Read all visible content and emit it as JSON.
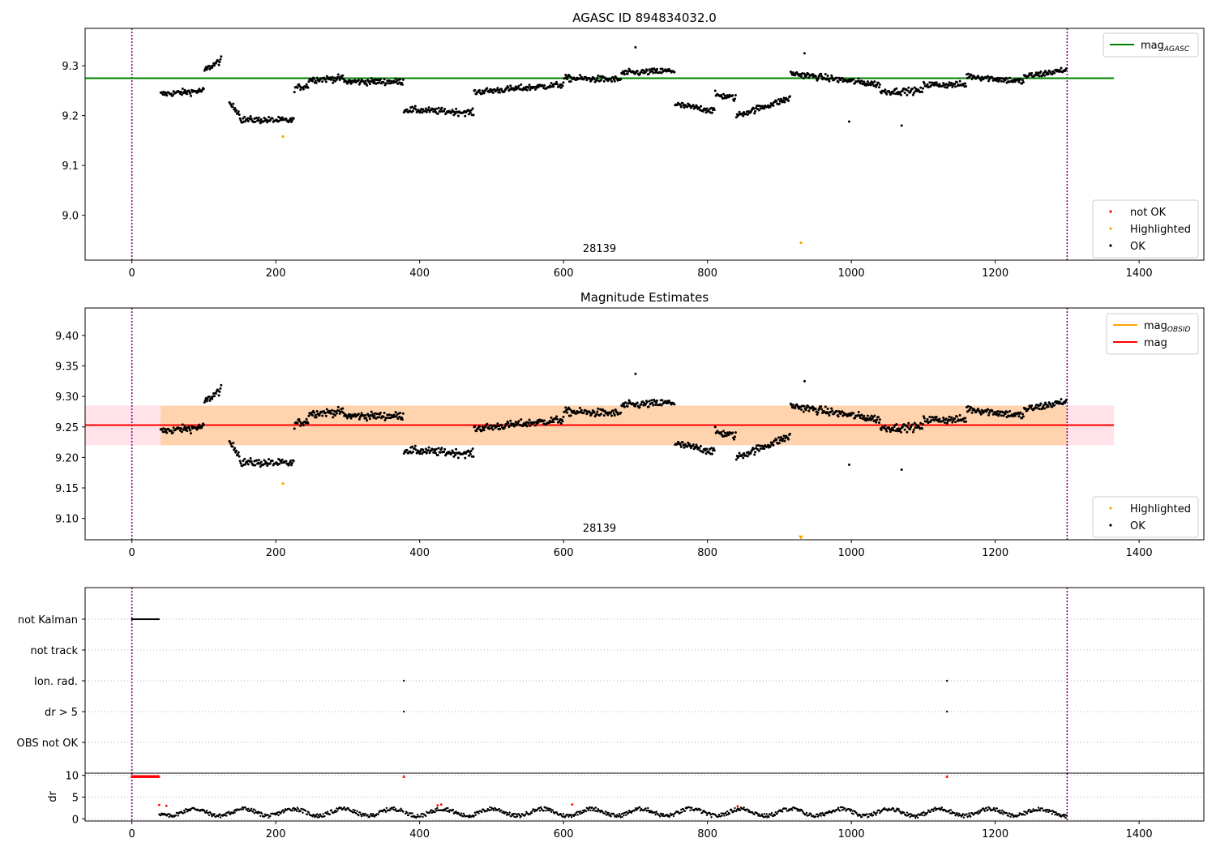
{
  "chart_data": [
    {
      "id": "p1",
      "type": "scatter",
      "title": "AGASC ID 894834032.0",
      "xlim": [
        -65,
        1490
      ],
      "ylim": [
        8.91,
        9.375
      ],
      "xticks": [
        0,
        200,
        400,
        600,
        800,
        1000,
        1200,
        1400
      ],
      "yticks": [
        9.0,
        9.1,
        9.2,
        9.3
      ],
      "ytick_labels": [
        "9.0",
        "9.1",
        "9.2",
        "9.3"
      ],
      "vlines": [
        0,
        1300
      ],
      "hline": {
        "label": "mag",
        "sub": "AGASC",
        "value": 9.275,
        "x": [
          -65,
          1365
        ],
        "color": "#008000"
      },
      "annotation": {
        "text": "28139",
        "x": 650
      },
      "highlighted": [
        {
          "x": 210,
          "y": 9.158
        },
        {
          "x": 930,
          "y": 8.945
        }
      ],
      "outliers": [
        {
          "x": 997,
          "y": 9.188
        },
        {
          "x": 1070,
          "y": 9.18
        },
        {
          "x": 700,
          "y": 9.337
        },
        {
          "x": 935,
          "y": 9.325
        }
      ],
      "legend_top": [
        {
          "label": "mag",
          "sub": "AGASC",
          "color": "#008000",
          "marker": "line"
        }
      ],
      "legend_bottom": [
        {
          "label": "not OK",
          "color": "#ff0000",
          "marker": "dot"
        },
        {
          "label": "Highlighted",
          "color": "#ffa500",
          "marker": "dot"
        },
        {
          "label": "OK",
          "color": "#000000",
          "marker": "dot"
        }
      ]
    },
    {
      "id": "p2",
      "type": "scatter",
      "title": "Magnitude Estimates",
      "xlim": [
        -65,
        1490
      ],
      "ylim": [
        9.065,
        9.445
      ],
      "xticks": [
        0,
        200,
        400,
        600,
        800,
        1000,
        1200,
        1400
      ],
      "yticks": [
        9.1,
        9.15,
        9.2,
        9.25,
        9.3,
        9.35,
        9.4
      ],
      "ytick_labels": [
        "9.10",
        "9.15",
        "9.20",
        "9.25",
        "9.30",
        "9.35",
        "9.40"
      ],
      "vlines": [
        0,
        1300
      ],
      "mag_line": {
        "label": "mag",
        "value": 9.253,
        "x": [
          -65,
          1365
        ],
        "color": "#ff0000"
      },
      "mag_band": {
        "low": 9.22,
        "high": 9.285,
        "x": [
          -65,
          1365
        ],
        "color": "#ffc0cb"
      },
      "obsid_band": {
        "low": 9.22,
        "high": 9.285,
        "x": [
          40,
          1300
        ],
        "color": "#ffa500"
      },
      "annotation": {
        "text": "28139",
        "x": 650
      },
      "highlighted": [
        {
          "x": 210,
          "y": 9.157
        },
        {
          "x": 930,
          "y": 9.068
        }
      ],
      "outliers": [
        {
          "x": 997,
          "y": 9.188
        },
        {
          "x": 1070,
          "y": 9.18
        },
        {
          "x": 700,
          "y": 9.337
        },
        {
          "x": 935,
          "y": 9.325
        }
      ],
      "legend_top": [
        {
          "label": "mag",
          "sub": "OBSID",
          "color": "#ffa500",
          "marker": "line"
        },
        {
          "label": "mag",
          "sub": "",
          "color": "#ff0000",
          "marker": "line"
        }
      ],
      "legend_bottom": [
        {
          "label": "Highlighted",
          "color": "#ffa500",
          "marker": "dot"
        },
        {
          "label": "OK",
          "color": "#000000",
          "marker": "dot"
        }
      ]
    },
    {
      "id": "p3",
      "type": "scatter",
      "xlim": [
        -65,
        1490
      ],
      "xticks": [
        0,
        200,
        400,
        600,
        800,
        1000,
        1200,
        1400
      ],
      "vlines": [
        0,
        1300
      ],
      "flags": [
        "not Kalman",
        "not track",
        "Ion. rad.",
        "dr > 5",
        "OBS not OK"
      ],
      "flag_points": [
        {
          "flag": "not Kalman",
          "x_start": 0,
          "x_end": 38,
          "step": 1.5
        },
        {
          "flag": "Ion. rad.",
          "x": [
            378,
            1133
          ]
        },
        {
          "flag": "dr > 5",
          "x": [
            378,
            1133
          ]
        }
      ]
    },
    {
      "id": "p4",
      "type": "scatter",
      "ylabel": "dr",
      "xlim": [
        -65,
        1490
      ],
      "ylim": [
        -0.5,
        10.5
      ],
      "yticks": [
        0,
        5,
        10
      ],
      "ytick_labels": [
        "0",
        "5",
        "10"
      ],
      "xticks": [
        0,
        200,
        400,
        600,
        800,
        1000,
        1200,
        1400
      ],
      "xtick_labels": [
        "0",
        "200",
        "400",
        "600",
        "800",
        "1000",
        "1200",
        "1400"
      ],
      "vlines": [
        0,
        1300
      ],
      "clipped_red": [
        {
          "x_start": 0,
          "x_end": 38,
          "y": 9.8
        },
        {
          "x": 378,
          "y": 9.8
        },
        {
          "x": 1133,
          "y": 9.8
        }
      ],
      "red_points": [
        {
          "x": 38,
          "y": 3.2
        },
        {
          "x": 48,
          "y": 3.0
        },
        {
          "x": 425,
          "y": 3.1
        },
        {
          "x": 430,
          "y": 3.3
        },
        {
          "x": 612,
          "y": 3.3
        },
        {
          "x": 842,
          "y": 2.9
        }
      ]
    }
  ]
}
